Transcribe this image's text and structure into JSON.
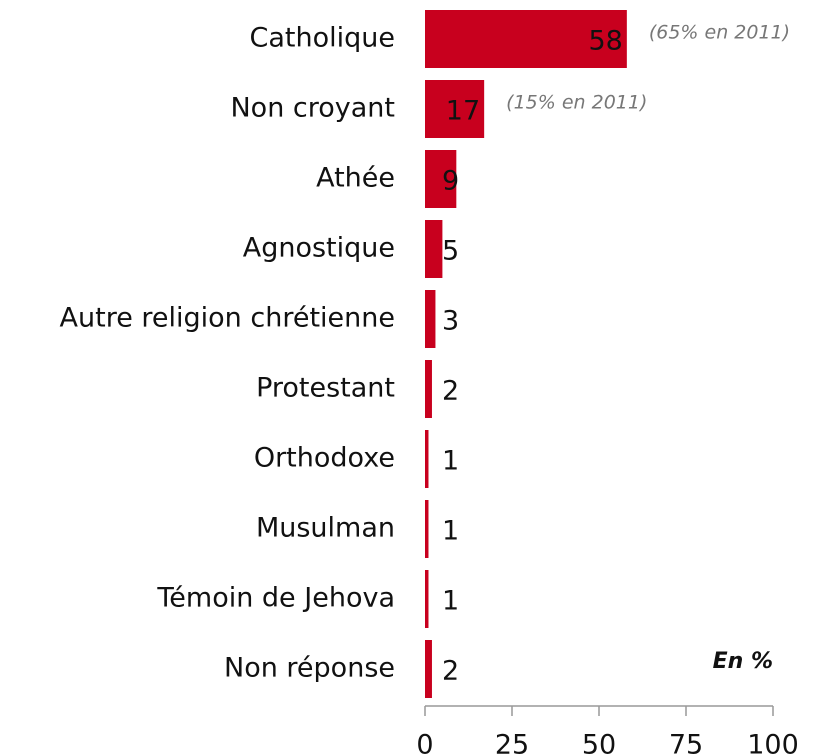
{
  "chart_data": {
    "type": "barh",
    "categories": [
      "Catholique",
      "Non croyant",
      "Athée",
      "Agnostique",
      "Autre religion chrétienne",
      "Protestant",
      "Orthodoxe",
      "Musulman",
      "Témoin de Jehova",
      "Non réponse"
    ],
    "values": [
      58,
      17,
      9,
      5,
      3,
      2,
      1,
      1,
      1,
      2
    ],
    "color": "#c8001e",
    "xlim": [
      0,
      100
    ],
    "xticks": [
      0,
      25,
      50,
      75,
      100
    ],
    "grid": false,
    "annotations": [
      "(65% en 2011)",
      "(15% en 2011)"
    ],
    "unit_note": "En %"
  }
}
